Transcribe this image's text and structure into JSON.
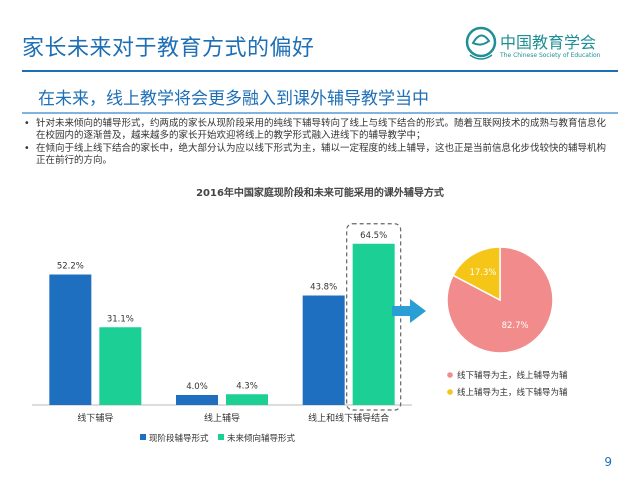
{
  "header": {
    "title": "家长未来对于教育方式的偏好",
    "logo_cn": "中国教育学会",
    "logo_en": "The Chinese Society of Education"
  },
  "subtitle": "在未来，线上教学将会更多融入到课外辅导教学当中",
  "bullets": [
    "针对未来倾向的辅导形式，约两成的家长从现阶段采用的纯线下辅导转向了线上与线下结合的形式。随着互联网技术的成熟与教育信息化在校园内的逐渐普及，越来越多的家长开始欢迎将线上的教学形式融入进线下的辅导教学中；",
    "在倾向于线上线下结合的家长中，绝大部分认为应以线下形式为主，辅以一定程度的线上辅导，这也正是当前信息化步伐较快的辅导机构正在前行的方向。"
  ],
  "page_number": "9",
  "colors": {
    "current": "#1f6fc1",
    "future": "#1ccf94",
    "pie_offline": "#f28b8b",
    "pie_online": "#f5c518",
    "accent": "#1e6fb6"
  },
  "chart_data": [
    {
      "type": "bar",
      "title": "2016年中国家庭现阶段和未来可能采用的课外辅导方式",
      "categories": [
        "线下辅导",
        "线上辅导",
        "线上和线下辅导结合"
      ],
      "series": [
        {
          "name": "现阶段辅导形式",
          "values": [
            52.2,
            4.0,
            43.8
          ],
          "labels": [
            "52.2%",
            "4.0%",
            "43.8%"
          ]
        },
        {
          "name": "未来倾向辅导形式",
          "values": [
            31.1,
            4.3,
            64.5
          ],
          "labels": [
            "31.1%",
            "4.3%",
            "64.5%"
          ]
        }
      ],
      "ylim": [
        0,
        70
      ],
      "grid": false,
      "legend": "bottom",
      "highlighted_category": "线上和线下辅导结合"
    },
    {
      "type": "pie",
      "labels": [
        "线下辅导为主，线上辅导为辅",
        "线上辅导为主，线下辅导为辅"
      ],
      "values": [
        82.7,
        17.3
      ],
      "value_labels": [
        "82.7%",
        "17.3%"
      ],
      "legend": "bottom"
    }
  ]
}
